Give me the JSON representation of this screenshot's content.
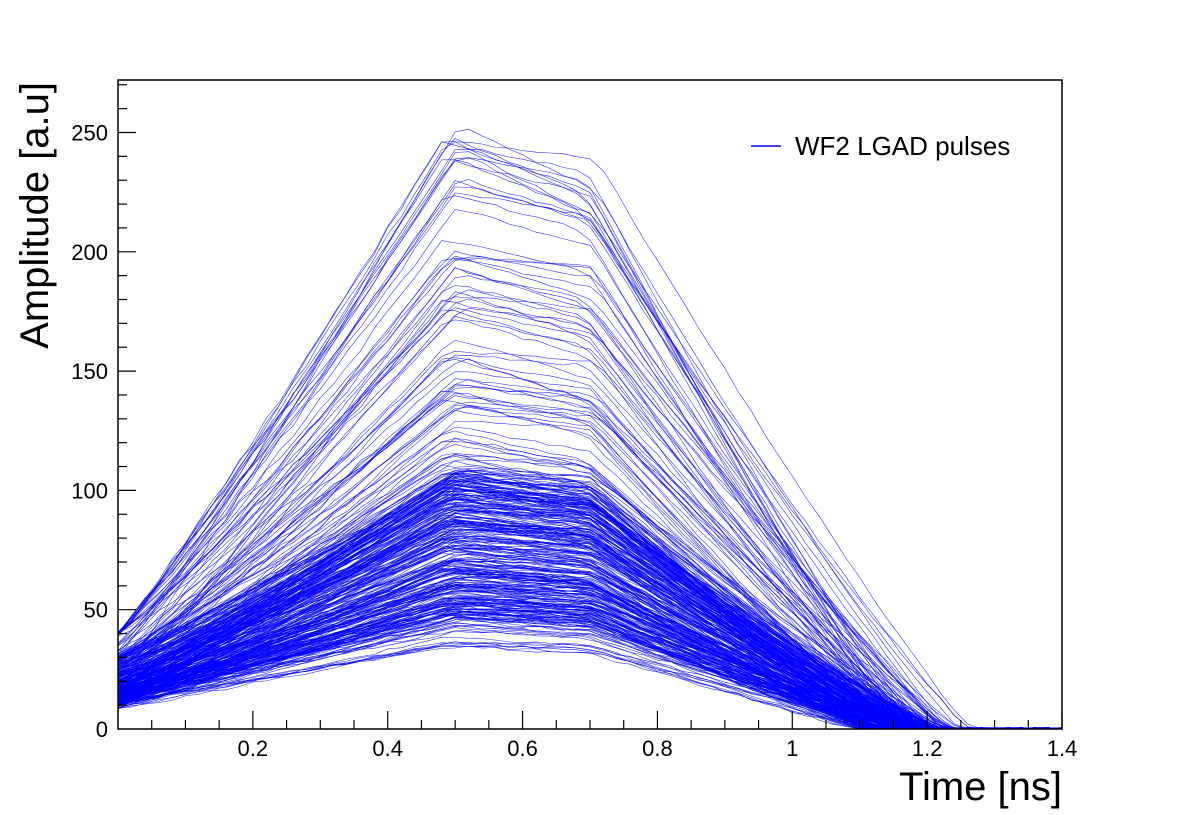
{
  "chart_data": {
    "type": "line",
    "title": "",
    "xlabel": "Time [ns]",
    "ylabel": "Amplitude [a.u]",
    "xlim": [
      0.0,
      1.4
    ],
    "ylim": [
      0,
      272
    ],
    "x_ticks": [
      0.2,
      0.4,
      0.6,
      0.8,
      1.0,
      1.2,
      1.4
    ],
    "x_tick_labels": [
      "0.2",
      "0.4",
      "0.6",
      "0.8",
      "1",
      "1.2",
      "1.4"
    ],
    "y_ticks": [
      0,
      50,
      100,
      150,
      200,
      250
    ],
    "y_tick_labels": [
      "0",
      "50",
      "100",
      "150",
      "200",
      "250"
    ],
    "grid": false,
    "legend_position": "top-right",
    "series_color": "#0000ff",
    "series": [
      {
        "name": "WF2 LGAD pulses",
        "pulse_count": 400,
        "shape": "trapezoid",
        "x_rise_end": 0.5,
        "x_flat_end": 0.7,
        "x_fall_end": 1.2,
        "peak_amplitude_range": [
          34,
          255
        ],
        "typical_peak_amplitude_range": [
          45,
          110
        ],
        "start_amplitude_range": [
          6,
          40
        ]
      }
    ]
  }
}
